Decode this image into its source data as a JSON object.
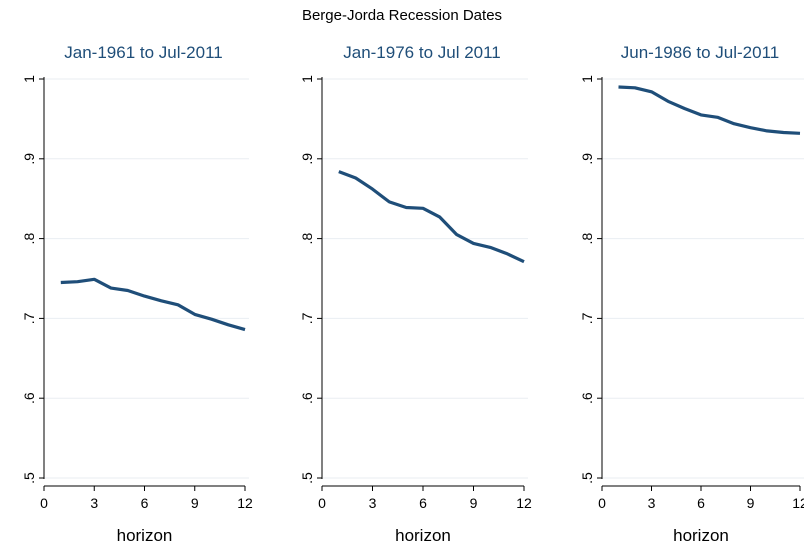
{
  "title": "Berge-Jorda Recession Dates",
  "colors": {
    "line": "#1f4e79",
    "panel_title": "#1f4e79",
    "grid": "#eaeef2",
    "axis": "#000000",
    "text": "#000000"
  },
  "chart_data": [
    {
      "type": "line",
      "title": "Jan-1961 to Jul-2011",
      "xlabel": "horizon",
      "ylabel": "",
      "xlim": [
        0,
        12
      ],
      "ylim": [
        0.5,
        1
      ],
      "xticks": [
        0,
        3,
        6,
        9,
        12
      ],
      "xtick_labels": [
        "0",
        "3",
        "6",
        "9",
        "12"
      ],
      "yticks": [
        0.5,
        0.6,
        0.7,
        0.8,
        0.9,
        1
      ],
      "ytick_labels": [
        ".5",
        ".6",
        ".7",
        ".8",
        ".9",
        "1"
      ],
      "grid": true,
      "series": [
        {
          "x": [
            1,
            2,
            3,
            4,
            5,
            6,
            7,
            8,
            9,
            10,
            11,
            12
          ],
          "values": [
            0.745,
            0.746,
            0.749,
            0.738,
            0.735,
            0.728,
            0.722,
            0.717,
            0.705,
            0.699,
            0.692,
            0.686
          ]
        }
      ]
    },
    {
      "type": "line",
      "title": "Jan-1976 to Jul 2011",
      "xlabel": "horizon",
      "ylabel": "",
      "xlim": [
        0,
        12
      ],
      "ylim": [
        0.5,
        1
      ],
      "xticks": [
        0,
        3,
        6,
        9,
        12
      ],
      "xtick_labels": [
        "0",
        "3",
        "6",
        "9",
        "12"
      ],
      "yticks": [
        0.5,
        0.6,
        0.7,
        0.8,
        0.9,
        1
      ],
      "ytick_labels": [
        ".5",
        ".6",
        ".7",
        ".8",
        ".9",
        "1"
      ],
      "grid": true,
      "series": [
        {
          "x": [
            1,
            2,
            3,
            4,
            5,
            6,
            7,
            8,
            9,
            10,
            11,
            12
          ],
          "values": [
            0.884,
            0.876,
            0.862,
            0.846,
            0.839,
            0.838,
            0.827,
            0.805,
            0.794,
            0.789,
            0.781,
            0.771
          ]
        }
      ]
    },
    {
      "type": "line",
      "title": "Jun-1986 to Jul-2011",
      "xlabel": "horizon",
      "ylabel": "",
      "xlim": [
        0,
        12
      ],
      "ylim": [
        0.5,
        1
      ],
      "xticks": [
        0,
        3,
        6,
        9,
        12
      ],
      "xtick_labels": [
        "0",
        "3",
        "6",
        "9",
        "12"
      ],
      "yticks": [
        0.5,
        0.6,
        0.7,
        0.8,
        0.9,
        1
      ],
      "ytick_labels": [
        ".5",
        ".6",
        ".7",
        ".8",
        ".9",
        "1"
      ],
      "grid": true,
      "series": [
        {
          "x": [
            1,
            2,
            3,
            4,
            5,
            6,
            7,
            8,
            9,
            10,
            11,
            12
          ],
          "values": [
            0.99,
            0.989,
            0.984,
            0.972,
            0.963,
            0.955,
            0.952,
            0.944,
            0.939,
            0.935,
            0.933,
            0.932
          ]
        }
      ]
    }
  ]
}
